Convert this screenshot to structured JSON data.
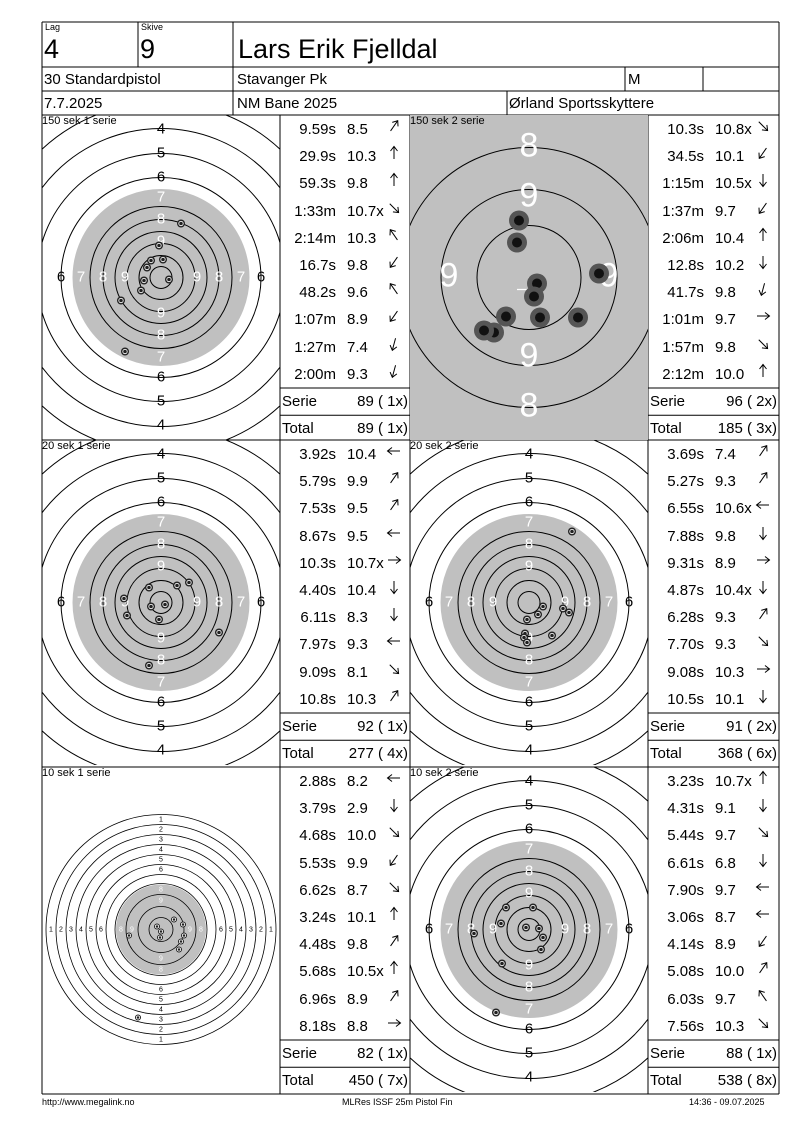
{
  "header": {
    "lag_caption": "Lag",
    "skive_caption": "Skive",
    "lag": "4",
    "skive": "9",
    "name": "Lars Erik Fjelldal",
    "class": "30 Standardpistol",
    "club": "Stavanger Pk",
    "gender": "M",
    "date": "7.7.2025",
    "venue": "NM Bane 2025",
    "organizer": "Ørland Sportsskyttere"
  },
  "footer": {
    "url": "http://www.megalink.no",
    "program": "MLRes ISSF 25m Pistol Fin",
    "timestamp": "14:36 - 09.07.2025"
  },
  "series": [
    {
      "title": "150 sek 1 serie",
      "shots": [
        {
          "time": "9.59s",
          "score": "8.5",
          "dir": "ne"
        },
        {
          "time": "29.9s",
          "score": "10.3",
          "dir": "n"
        },
        {
          "time": "59.3s",
          "score": "9.8",
          "dir": "n"
        },
        {
          "time": "1:33m",
          "score": "10.7x",
          "dir": "se"
        },
        {
          "time": "2:14m",
          "score": "10.3",
          "dir": "nw"
        },
        {
          "time": "16.7s",
          "score": "9.8",
          "dir": "sw"
        },
        {
          "time": "48.2s",
          "score": "9.6",
          "dir": "nw"
        },
        {
          "time": "1:07m",
          "score": "8.9",
          "dir": "sw"
        },
        {
          "time": "1:27m",
          "score": "7.4",
          "dir": "ssw"
        },
        {
          "time": "2:00m",
          "score": "9.3",
          "dir": "ssw"
        }
      ],
      "serie_label": "Serie",
      "serie_value": "89 ( 1x)",
      "total_label": "Total",
      "total_value": "89 ( 1x)"
    },
    {
      "title": "150 sek 2 serie",
      "shots": [
        {
          "time": "10.3s",
          "score": "10.8x",
          "dir": "se"
        },
        {
          "time": "34.5s",
          "score": "10.1",
          "dir": "sw"
        },
        {
          "time": "1:15m",
          "score": "10.5x",
          "dir": "s"
        },
        {
          "time": "1:37m",
          "score": "9.7",
          "dir": "sw"
        },
        {
          "time": "2:06m",
          "score": "10.4",
          "dir": "n"
        },
        {
          "time": "12.8s",
          "score": "10.2",
          "dir": "s"
        },
        {
          "time": "41.7s",
          "score": "9.8",
          "dir": "ssw"
        },
        {
          "time": "1:01m",
          "score": "9.7",
          "dir": "e"
        },
        {
          "time": "1:57m",
          "score": "9.8",
          "dir": "se"
        },
        {
          "time": "2:12m",
          "score": "10.0",
          "dir": "n"
        }
      ],
      "serie_label": "Serie",
      "serie_value": "96 ( 2x)",
      "total_label": "Total",
      "total_value": "185 ( 3x)"
    },
    {
      "title": "20 sek 1 serie",
      "shots": [
        {
          "time": "3.92s",
          "score": "10.4",
          "dir": "w"
        },
        {
          "time": "5.79s",
          "score": "9.9",
          "dir": "ne"
        },
        {
          "time": "7.53s",
          "score": "9.5",
          "dir": "ne"
        },
        {
          "time": "8.67s",
          "score": "9.5",
          "dir": "w"
        },
        {
          "time": "10.3s",
          "score": "10.7x",
          "dir": "e"
        },
        {
          "time": "4.40s",
          "score": "10.4",
          "dir": "s"
        },
        {
          "time": "6.11s",
          "score": "8.3",
          "dir": "s"
        },
        {
          "time": "7.97s",
          "score": "9.3",
          "dir": "w"
        },
        {
          "time": "9.09s",
          "score": "8.1",
          "dir": "se"
        },
        {
          "time": "10.8s",
          "score": "10.3",
          "dir": "ne"
        }
      ],
      "serie_label": "Serie",
      "serie_value": "92 ( 1x)",
      "total_label": "Total",
      "total_value": "277 ( 4x)"
    },
    {
      "title": "20 sek 2 serie",
      "shots": [
        {
          "time": "3.69s",
          "score": "7.4",
          "dir": "ne"
        },
        {
          "time": "5.27s",
          "score": "9.3",
          "dir": "ne"
        },
        {
          "time": "6.55s",
          "score": "10.6x",
          "dir": "w"
        },
        {
          "time": "7.88s",
          "score": "9.8",
          "dir": "s"
        },
        {
          "time": "9.31s",
          "score": "8.9",
          "dir": "e"
        },
        {
          "time": "4.87s",
          "score": "10.4x",
          "dir": "s"
        },
        {
          "time": "6.28s",
          "score": "9.3",
          "dir": "ne"
        },
        {
          "time": "7.70s",
          "score": "9.3",
          "dir": "se"
        },
        {
          "time": "9.08s",
          "score": "10.3",
          "dir": "e"
        },
        {
          "time": "10.5s",
          "score": "10.1",
          "dir": "s"
        }
      ],
      "serie_label": "Serie",
      "serie_value": "91 ( 2x)",
      "total_label": "Total",
      "total_value": "368 ( 6x)"
    },
    {
      "title": "10 sek 1 serie",
      "shots": [
        {
          "time": "2.88s",
          "score": "8.2",
          "dir": "w"
        },
        {
          "time": "3.79s",
          "score": "2.9",
          "dir": "s"
        },
        {
          "time": "4.68s",
          "score": "10.0",
          "dir": "se"
        },
        {
          "time": "5.53s",
          "score": "9.9",
          "dir": "sw"
        },
        {
          "time": "6.62s",
          "score": "8.7",
          "dir": "se"
        },
        {
          "time": "3.24s",
          "score": "10.1",
          "dir": "n"
        },
        {
          "time": "4.48s",
          "score": "9.8",
          "dir": "ne"
        },
        {
          "time": "5.68s",
          "score": "10.5x",
          "dir": "n"
        },
        {
          "time": "6.96s",
          "score": "8.9",
          "dir": "ne"
        },
        {
          "time": "8.18s",
          "score": "8.8",
          "dir": "e"
        }
      ],
      "serie_label": "Serie",
      "serie_value": "82 ( 1x)",
      "total_label": "Total",
      "total_value": "450 ( 7x)"
    },
    {
      "title": "10 sek 2 serie",
      "shots": [
        {
          "time": "3.23s",
          "score": "10.7x",
          "dir": "n"
        },
        {
          "time": "4.31s",
          "score": "9.1",
          "dir": "s"
        },
        {
          "time": "5.44s",
          "score": "9.7",
          "dir": "se"
        },
        {
          "time": "6.61s",
          "score": "6.8",
          "dir": "s"
        },
        {
          "time": "7.90s",
          "score": "9.7",
          "dir": "w"
        },
        {
          "time": "3.06s",
          "score": "8.7",
          "dir": "w"
        },
        {
          "time": "4.14s",
          "score": "8.9",
          "dir": "sw"
        },
        {
          "time": "5.08s",
          "score": "10.0",
          "dir": "ne"
        },
        {
          "time": "6.03s",
          "score": "9.7",
          "dir": "nw"
        },
        {
          "time": "7.56s",
          "score": "10.3",
          "dir": "se"
        }
      ],
      "serie_label": "Serie",
      "serie_value": "88 ( 1x)",
      "total_label": "Total",
      "total_value": "538 ( 8x)"
    }
  ],
  "targets": {
    "ring_labels_outer": [
      "4",
      "5",
      "6"
    ],
    "ring_labels_inner": [
      "7",
      "8",
      "9"
    ],
    "ring_labels_zoom": [
      "8",
      "9"
    ],
    "ring_labels_rapid": [
      "1",
      "2",
      "3",
      "4",
      "5",
      "6",
      "7",
      "8",
      "9"
    ]
  }
}
